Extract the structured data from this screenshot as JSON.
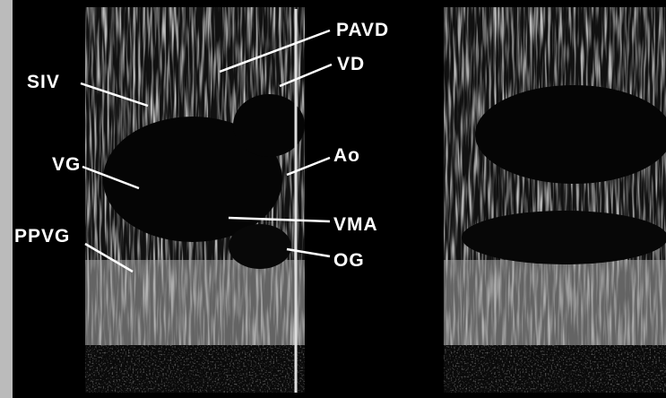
{
  "labels": [
    "PAVD",
    "VD",
    "SIV",
    "VG",
    "Ao",
    "VMA",
    "PPVG",
    "OG"
  ]
}
